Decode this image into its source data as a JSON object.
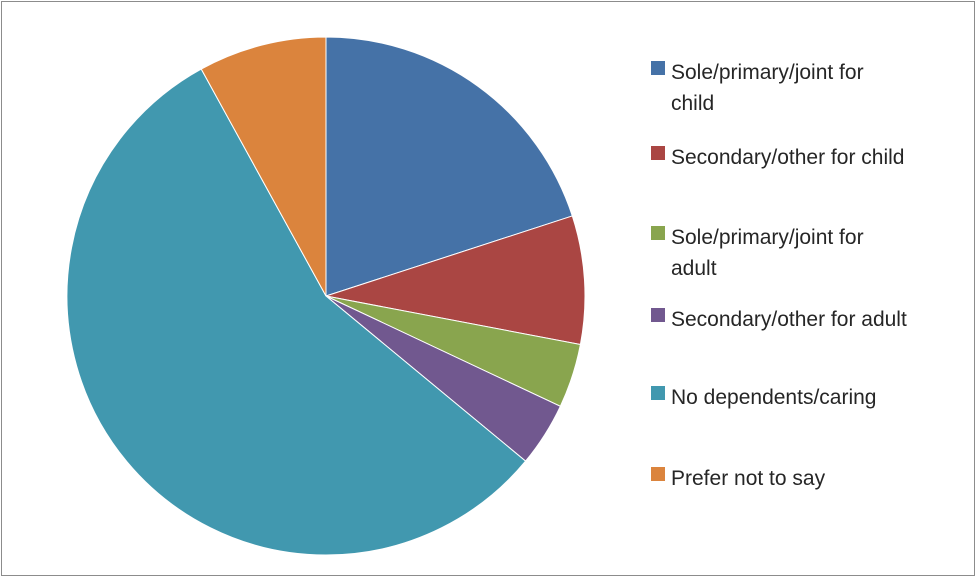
{
  "chart_data": {
    "type": "pie",
    "title": "",
    "legend_position": "right",
    "start_angle_deg": 0,
    "direction": "clockwise",
    "slices": [
      {
        "label": "Sole/primary/joint for child",
        "lines": [
          "Sole/primary/joint for",
          "child"
        ],
        "value": 20,
        "color": "#4572A7"
      },
      {
        "label": "Secondary/other for child",
        "lines": [
          "Secondary/other for child"
        ],
        "value": 8,
        "color": "#AA4643"
      },
      {
        "label": "Sole/primary/joint for adult",
        "lines": [
          "Sole/primary/joint for",
          "adult"
        ],
        "value": 4,
        "color": "#89A54E"
      },
      {
        "label": "Secondary/other for adult",
        "lines": [
          "Secondary/other for adult"
        ],
        "value": 4,
        "color": "#71588F"
      },
      {
        "label": "No dependents/caring",
        "lines": [
          "No dependents/caring"
        ],
        "value": 56,
        "color": "#4198AF"
      },
      {
        "label": "Prefer not to say",
        "lines": [
          "Prefer not to say"
        ],
        "value": 8,
        "color": "#DB843D"
      }
    ]
  }
}
